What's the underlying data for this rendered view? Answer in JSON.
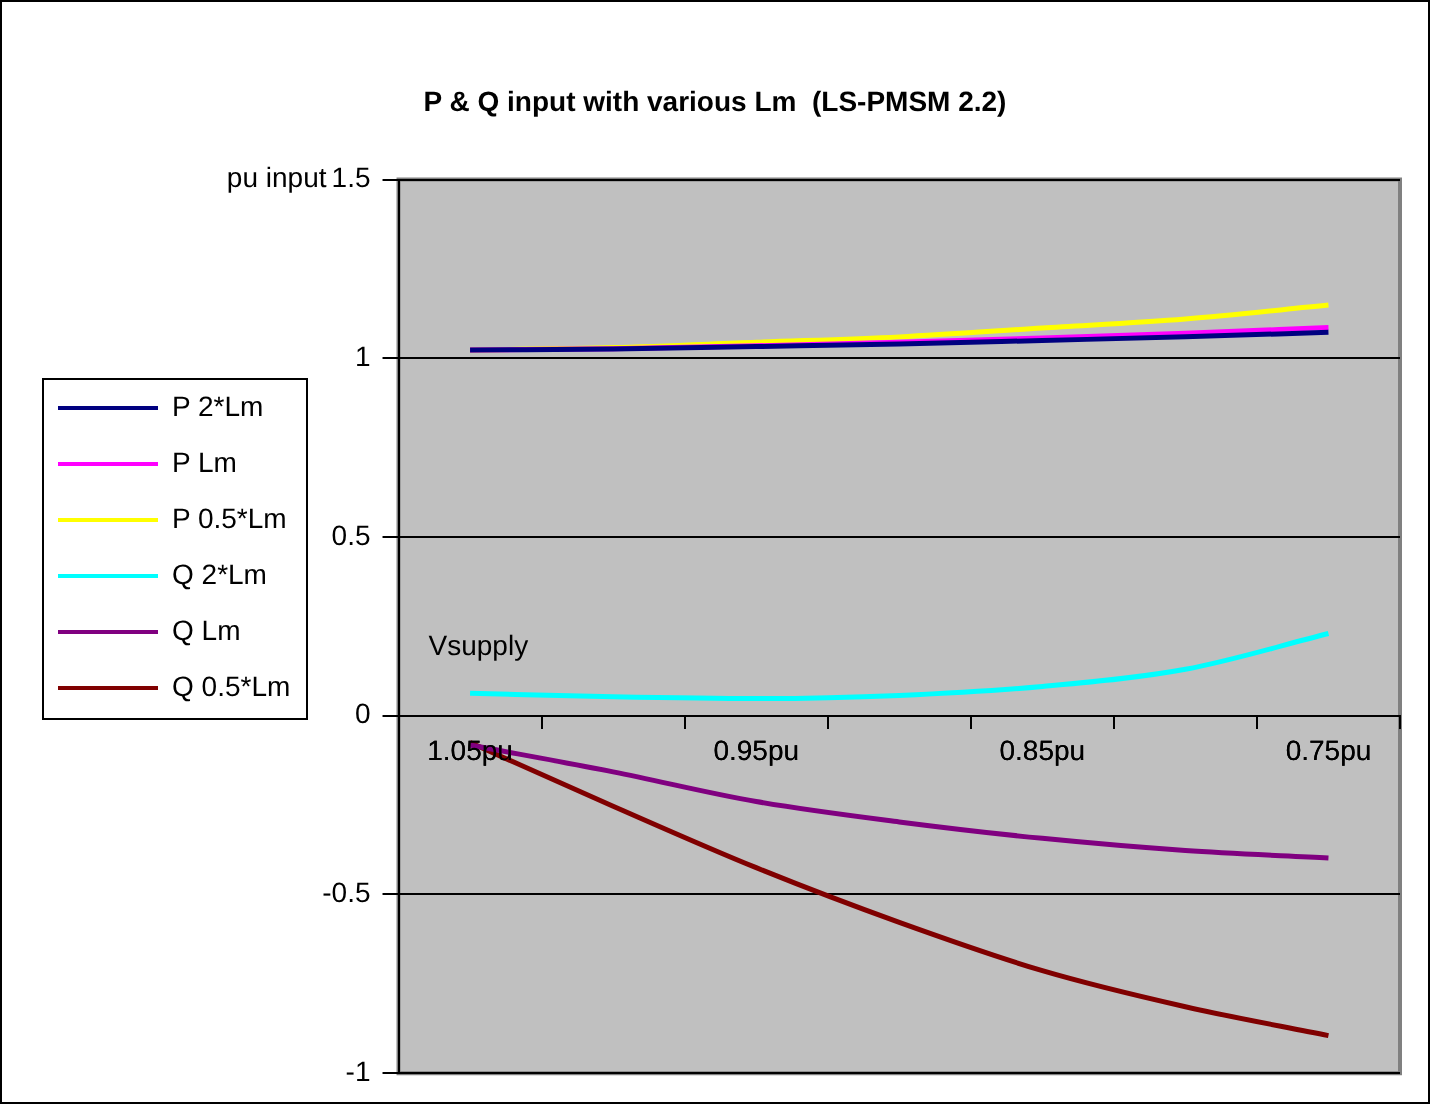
{
  "chart_data": {
    "type": "line",
    "title": "P & Q input with various Lm  (LS-PMSM 2.2)",
    "ylabel": "pu input",
    "categories": [
      "1.05pu",
      null,
      "0.95pu",
      null,
      "0.85pu",
      null,
      "0.75pu"
    ],
    "series": [
      {
        "name": "P 2*Lm",
        "color": "#000080",
        "values": [
          1.023,
          1.026,
          1.033,
          1.04,
          1.05,
          1.06,
          1.073
        ]
      },
      {
        "name": "P Lm",
        "color": "#ff00ff",
        "values": [
          1.023,
          1.027,
          1.035,
          1.045,
          1.057,
          1.07,
          1.086
        ]
      },
      {
        "name": "P 0.5*Lm",
        "color": "#ffff00",
        "values": [
          1.023,
          1.03,
          1.045,
          1.06,
          1.085,
          1.11,
          1.149
        ]
      },
      {
        "name": "Q 2*Lm",
        "color": "#00ffff",
        "values": [
          0.063,
          0.053,
          0.048,
          0.057,
          0.082,
          0.13,
          0.23
        ]
      },
      {
        "name": "Q Lm",
        "color": "#800080",
        "values": [
          -0.082,
          -0.157,
          -0.24,
          -0.297,
          -0.343,
          -0.377,
          -0.398
        ]
      },
      {
        "name": "Q 0.5*Lm",
        "color": "#800000",
        "values": [
          -0.075,
          -0.253,
          -0.425,
          -0.578,
          -0.713,
          -0.814,
          -0.895
        ]
      }
    ],
    "ylim": [
      -1,
      1.5
    ],
    "yticks": [
      -1,
      -0.5,
      0,
      0.5,
      1,
      1.5
    ],
    "annotations": [
      "Vsupply"
    ],
    "grid": "y",
    "legend": "left",
    "marker": "none",
    "line_style": "solid"
  }
}
